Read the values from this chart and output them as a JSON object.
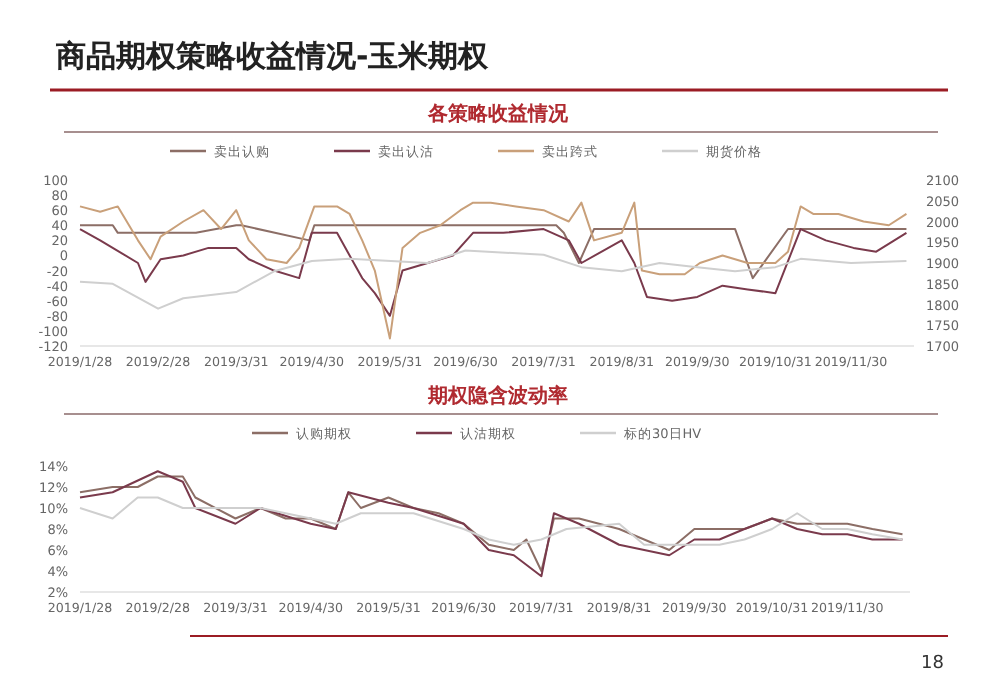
{
  "chart_data": [
    {
      "type": "line",
      "title": "各策略收益情况",
      "annotations": [
        "商品期权策略收益情况-玉米期权",
        "18"
      ],
      "legend": "top",
      "xlim": [
        "2019-01-28",
        "2019-12-25"
      ],
      "xticks": [
        {
          "value": "2019-01-28",
          "label": "2019/1/28"
        },
        {
          "value": "2019-02-28",
          "label": "2019/2/28"
        },
        {
          "value": "2019-03-31",
          "label": "2019/3/31"
        },
        {
          "value": "2019-04-30",
          "label": "2019/4/30"
        },
        {
          "value": "2019-05-31",
          "label": "2019/5/31"
        },
        {
          "value": "2019-06-30",
          "label": "2019/6/30"
        },
        {
          "value": "2019-07-31",
          "label": "2019/7/31"
        },
        {
          "value": "2019-08-31",
          "label": "2019/8/31"
        },
        {
          "value": "2019-09-30",
          "label": "2019/9/30"
        },
        {
          "value": "2019-10-31",
          "label": "2019/10/31"
        },
        {
          "value": "2019-11-30",
          "label": "2019/11/30"
        }
      ],
      "ylim": [
        -120,
        100
      ],
      "yticks": [
        -120,
        -100,
        -80,
        -60,
        -40,
        -20,
        0,
        20,
        40,
        60,
        80,
        100
      ],
      "y2lim": [
        1700,
        2100
      ],
      "y2ticks": [
        1700,
        1750,
        1800,
        1850,
        1900,
        1950,
        2000,
        2050,
        2100
      ],
      "series": [
        {
          "name": "卖出认购",
          "color": "#8c6e66",
          "x": [
            "2019-01-28",
            "2019-02-10",
            "2019-02-12",
            "2019-03-15",
            "2019-03-31",
            "2019-04-02",
            "2019-04-29",
            "2019-05-01",
            "2019-06-28",
            "2019-07-01",
            "2019-08-05",
            "2019-08-08",
            "2019-08-14",
            "2019-08-20",
            "2019-09-05",
            "2019-10-15",
            "2019-10-22",
            "2019-11-05",
            "2019-12-05",
            "2019-12-22"
          ],
          "values": [
            40,
            40,
            30,
            30,
            40,
            40,
            20,
            40,
            40,
            40,
            40,
            30,
            -10,
            35,
            35,
            35,
            -30,
            35,
            35,
            35
          ]
        },
        {
          "name": "卖出认沽",
          "color": "#7a3a4c",
          "x": [
            "2019-01-28",
            "2019-02-05",
            "2019-02-20",
            "2019-02-23",
            "2019-03-01",
            "2019-03-10",
            "2019-03-20",
            "2019-03-31",
            "2019-04-05",
            "2019-04-15",
            "2019-04-25",
            "2019-04-30",
            "2019-05-10",
            "2019-05-20",
            "2019-05-25",
            "2019-05-31",
            "2019-06-05",
            "2019-06-15",
            "2019-06-25",
            "2019-07-03",
            "2019-07-15",
            "2019-07-31",
            "2019-08-10",
            "2019-08-15",
            "2019-08-31",
            "2019-09-05",
            "2019-09-10",
            "2019-09-20",
            "2019-09-30",
            "2019-10-10",
            "2019-10-20",
            "2019-10-31",
            "2019-11-10",
            "2019-11-20",
            "2019-12-01",
            "2019-12-10",
            "2019-12-22"
          ],
          "values": [
            35,
            20,
            -10,
            -35,
            -5,
            0,
            10,
            10,
            -5,
            -20,
            -30,
            30,
            30,
            -30,
            -50,
            -80,
            -20,
            -10,
            0,
            30,
            30,
            35,
            20,
            -10,
            20,
            -10,
            -55,
            -60,
            -55,
            -40,
            -45,
            -50,
            35,
            20,
            10,
            5,
            30
          ]
        },
        {
          "name": "卖出跨式",
          "color": "#c9a07a",
          "x": [
            "2019-01-28",
            "2019-02-05",
            "2019-02-12",
            "2019-02-20",
            "2019-02-25",
            "2019-03-01",
            "2019-03-10",
            "2019-03-18",
            "2019-03-25",
            "2019-03-31",
            "2019-04-05",
            "2019-04-12",
            "2019-04-20",
            "2019-04-25",
            "2019-05-01",
            "2019-05-10",
            "2019-05-15",
            "2019-05-20",
            "2019-05-25",
            "2019-05-31",
            "2019-06-05",
            "2019-06-12",
            "2019-06-20",
            "2019-06-28",
            "2019-07-03",
            "2019-07-10",
            "2019-07-20",
            "2019-07-31",
            "2019-08-10",
            "2019-08-15",
            "2019-08-20",
            "2019-08-31",
            "2019-09-05",
            "2019-09-08",
            "2019-09-15",
            "2019-09-25",
            "2019-10-01",
            "2019-10-10",
            "2019-10-20",
            "2019-10-31",
            "2019-11-05",
            "2019-11-10",
            "2019-11-15",
            "2019-11-25",
            "2019-12-05",
            "2019-12-15",
            "2019-12-22"
          ],
          "values": [
            65,
            58,
            65,
            20,
            -5,
            25,
            45,
            60,
            35,
            60,
            20,
            -5,
            -10,
            10,
            65,
            65,
            55,
            20,
            -20,
            -110,
            10,
            30,
            40,
            60,
            70,
            70,
            65,
            60,
            45,
            70,
            20,
            30,
            70,
            -20,
            -25,
            -25,
            -10,
            0,
            -10,
            -10,
            5,
            65,
            55,
            55,
            45,
            40,
            55
          ]
        },
        {
          "name": "期货价格",
          "color": "#cfcfcf",
          "axis": "y2",
          "x": [
            "2019-01-28",
            "2019-02-10",
            "2019-02-28",
            "2019-03-10",
            "2019-03-31",
            "2019-04-15",
            "2019-04-30",
            "2019-05-15",
            "2019-06-15",
            "2019-06-30",
            "2019-07-31",
            "2019-08-15",
            "2019-08-31",
            "2019-09-15",
            "2019-09-30",
            "2019-10-15",
            "2019-10-31",
            "2019-11-10",
            "2019-11-30",
            "2019-12-22"
          ],
          "values": [
            1855,
            1850,
            1790,
            1815,
            1830,
            1880,
            1905,
            1910,
            1900,
            1930,
            1920,
            1890,
            1880,
            1900,
            1890,
            1880,
            1890,
            1910,
            1900,
            1905
          ]
        }
      ]
    },
    {
      "type": "line",
      "title": "期权隐含波动率",
      "legend": "top",
      "xlim": [
        "2019-01-28",
        "2019-12-25"
      ],
      "xticks": [
        {
          "value": "2019-01-28",
          "label": "2019/1/28"
        },
        {
          "value": "2019-02-28",
          "label": "2019/2/28"
        },
        {
          "value": "2019-03-31",
          "label": "2019/3/31"
        },
        {
          "value": "2019-04-30",
          "label": "2019/4/30"
        },
        {
          "value": "2019-05-31",
          "label": "2019/5/31"
        },
        {
          "value": "2019-06-30",
          "label": "2019/6/30"
        },
        {
          "value": "2019-07-31",
          "label": "2019/7/31"
        },
        {
          "value": "2019-08-31",
          "label": "2019/8/31"
        },
        {
          "value": "2019-09-30",
          "label": "2019/9/30"
        },
        {
          "value": "2019-10-31",
          "label": "2019/10/31"
        },
        {
          "value": "2019-11-30",
          "label": "2019/11/30"
        }
      ],
      "ylim": [
        2,
        14
      ],
      "yticks": [
        {
          "value": 2,
          "label": "2%"
        },
        {
          "value": 4,
          "label": "4%"
        },
        {
          "value": 6,
          "label": "6%"
        },
        {
          "value": 8,
          "label": "8%"
        },
        {
          "value": 10,
          "label": "10%"
        },
        {
          "value": 12,
          "label": "12%"
        },
        {
          "value": 14,
          "label": "14%"
        }
      ],
      "series": [
        {
          "name": "认购期权",
          "color": "#8c6e66",
          "x": [
            "2019-01-28",
            "2019-02-10",
            "2019-02-20",
            "2019-02-28",
            "2019-03-10",
            "2019-03-15",
            "2019-03-31",
            "2019-04-10",
            "2019-04-20",
            "2019-04-30",
            "2019-05-10",
            "2019-05-15",
            "2019-05-20",
            "2019-05-31",
            "2019-06-10",
            "2019-06-20",
            "2019-06-30",
            "2019-07-10",
            "2019-07-20",
            "2019-07-25",
            "2019-07-31",
            "2019-08-05",
            "2019-08-15",
            "2019-08-31",
            "2019-09-10",
            "2019-09-20",
            "2019-09-30",
            "2019-10-10",
            "2019-10-20",
            "2019-10-31",
            "2019-11-10",
            "2019-11-20",
            "2019-11-30",
            "2019-12-10",
            "2019-12-22"
          ],
          "values": [
            11.5,
            12,
            12,
            13,
            13,
            11,
            9,
            10,
            9,
            9,
            8,
            11.5,
            10,
            11,
            10,
            9.5,
            8.5,
            6.5,
            6,
            7,
            4,
            9,
            9,
            8,
            7,
            6,
            8,
            8,
            8,
            9,
            8.5,
            8.5,
            8.5,
            8,
            7.5
          ]
        },
        {
          "name": "认沽期权",
          "color": "#7a3a4c",
          "x": [
            "2019-01-28",
            "2019-02-10",
            "2019-02-28",
            "2019-03-10",
            "2019-03-15",
            "2019-03-31",
            "2019-04-10",
            "2019-04-30",
            "2019-05-10",
            "2019-05-15",
            "2019-05-31",
            "2019-06-10",
            "2019-06-30",
            "2019-07-10",
            "2019-07-20",
            "2019-07-31",
            "2019-08-05",
            "2019-08-15",
            "2019-08-31",
            "2019-09-10",
            "2019-09-20",
            "2019-09-30",
            "2019-10-10",
            "2019-10-20",
            "2019-10-31",
            "2019-11-10",
            "2019-11-20",
            "2019-11-30",
            "2019-12-10",
            "2019-12-22"
          ],
          "values": [
            11,
            11.5,
            13.5,
            12.5,
            10,
            8.5,
            10,
            8.5,
            8,
            11.5,
            10.5,
            10,
            8.5,
            6,
            5.5,
            3.5,
            9.5,
            8.5,
            6.5,
            6,
            5.5,
            7,
            7,
            8,
            9,
            8,
            7.5,
            7.5,
            7,
            7
          ]
        },
        {
          "name": "标的30日HV",
          "color": "#cfcfcf",
          "x": [
            "2019-01-28",
            "2019-02-10",
            "2019-02-20",
            "2019-02-28",
            "2019-03-10",
            "2019-03-31",
            "2019-04-10",
            "2019-04-30",
            "2019-05-10",
            "2019-05-20",
            "2019-05-31",
            "2019-06-10",
            "2019-06-30",
            "2019-07-10",
            "2019-07-20",
            "2019-07-31",
            "2019-08-10",
            "2019-08-31",
            "2019-09-10",
            "2019-09-30",
            "2019-10-10",
            "2019-10-20",
            "2019-10-31",
            "2019-11-10",
            "2019-11-20",
            "2019-11-30",
            "2019-12-10",
            "2019-12-22"
          ],
          "values": [
            10,
            9,
            11,
            11,
            10,
            10,
            10,
            9,
            8.5,
            9.5,
            9.5,
            9.5,
            8,
            7,
            6.5,
            7,
            8,
            8.5,
            6.5,
            6.5,
            6.5,
            7,
            8,
            9.5,
            8,
            8,
            7.5,
            7
          ]
        }
      ]
    }
  ]
}
